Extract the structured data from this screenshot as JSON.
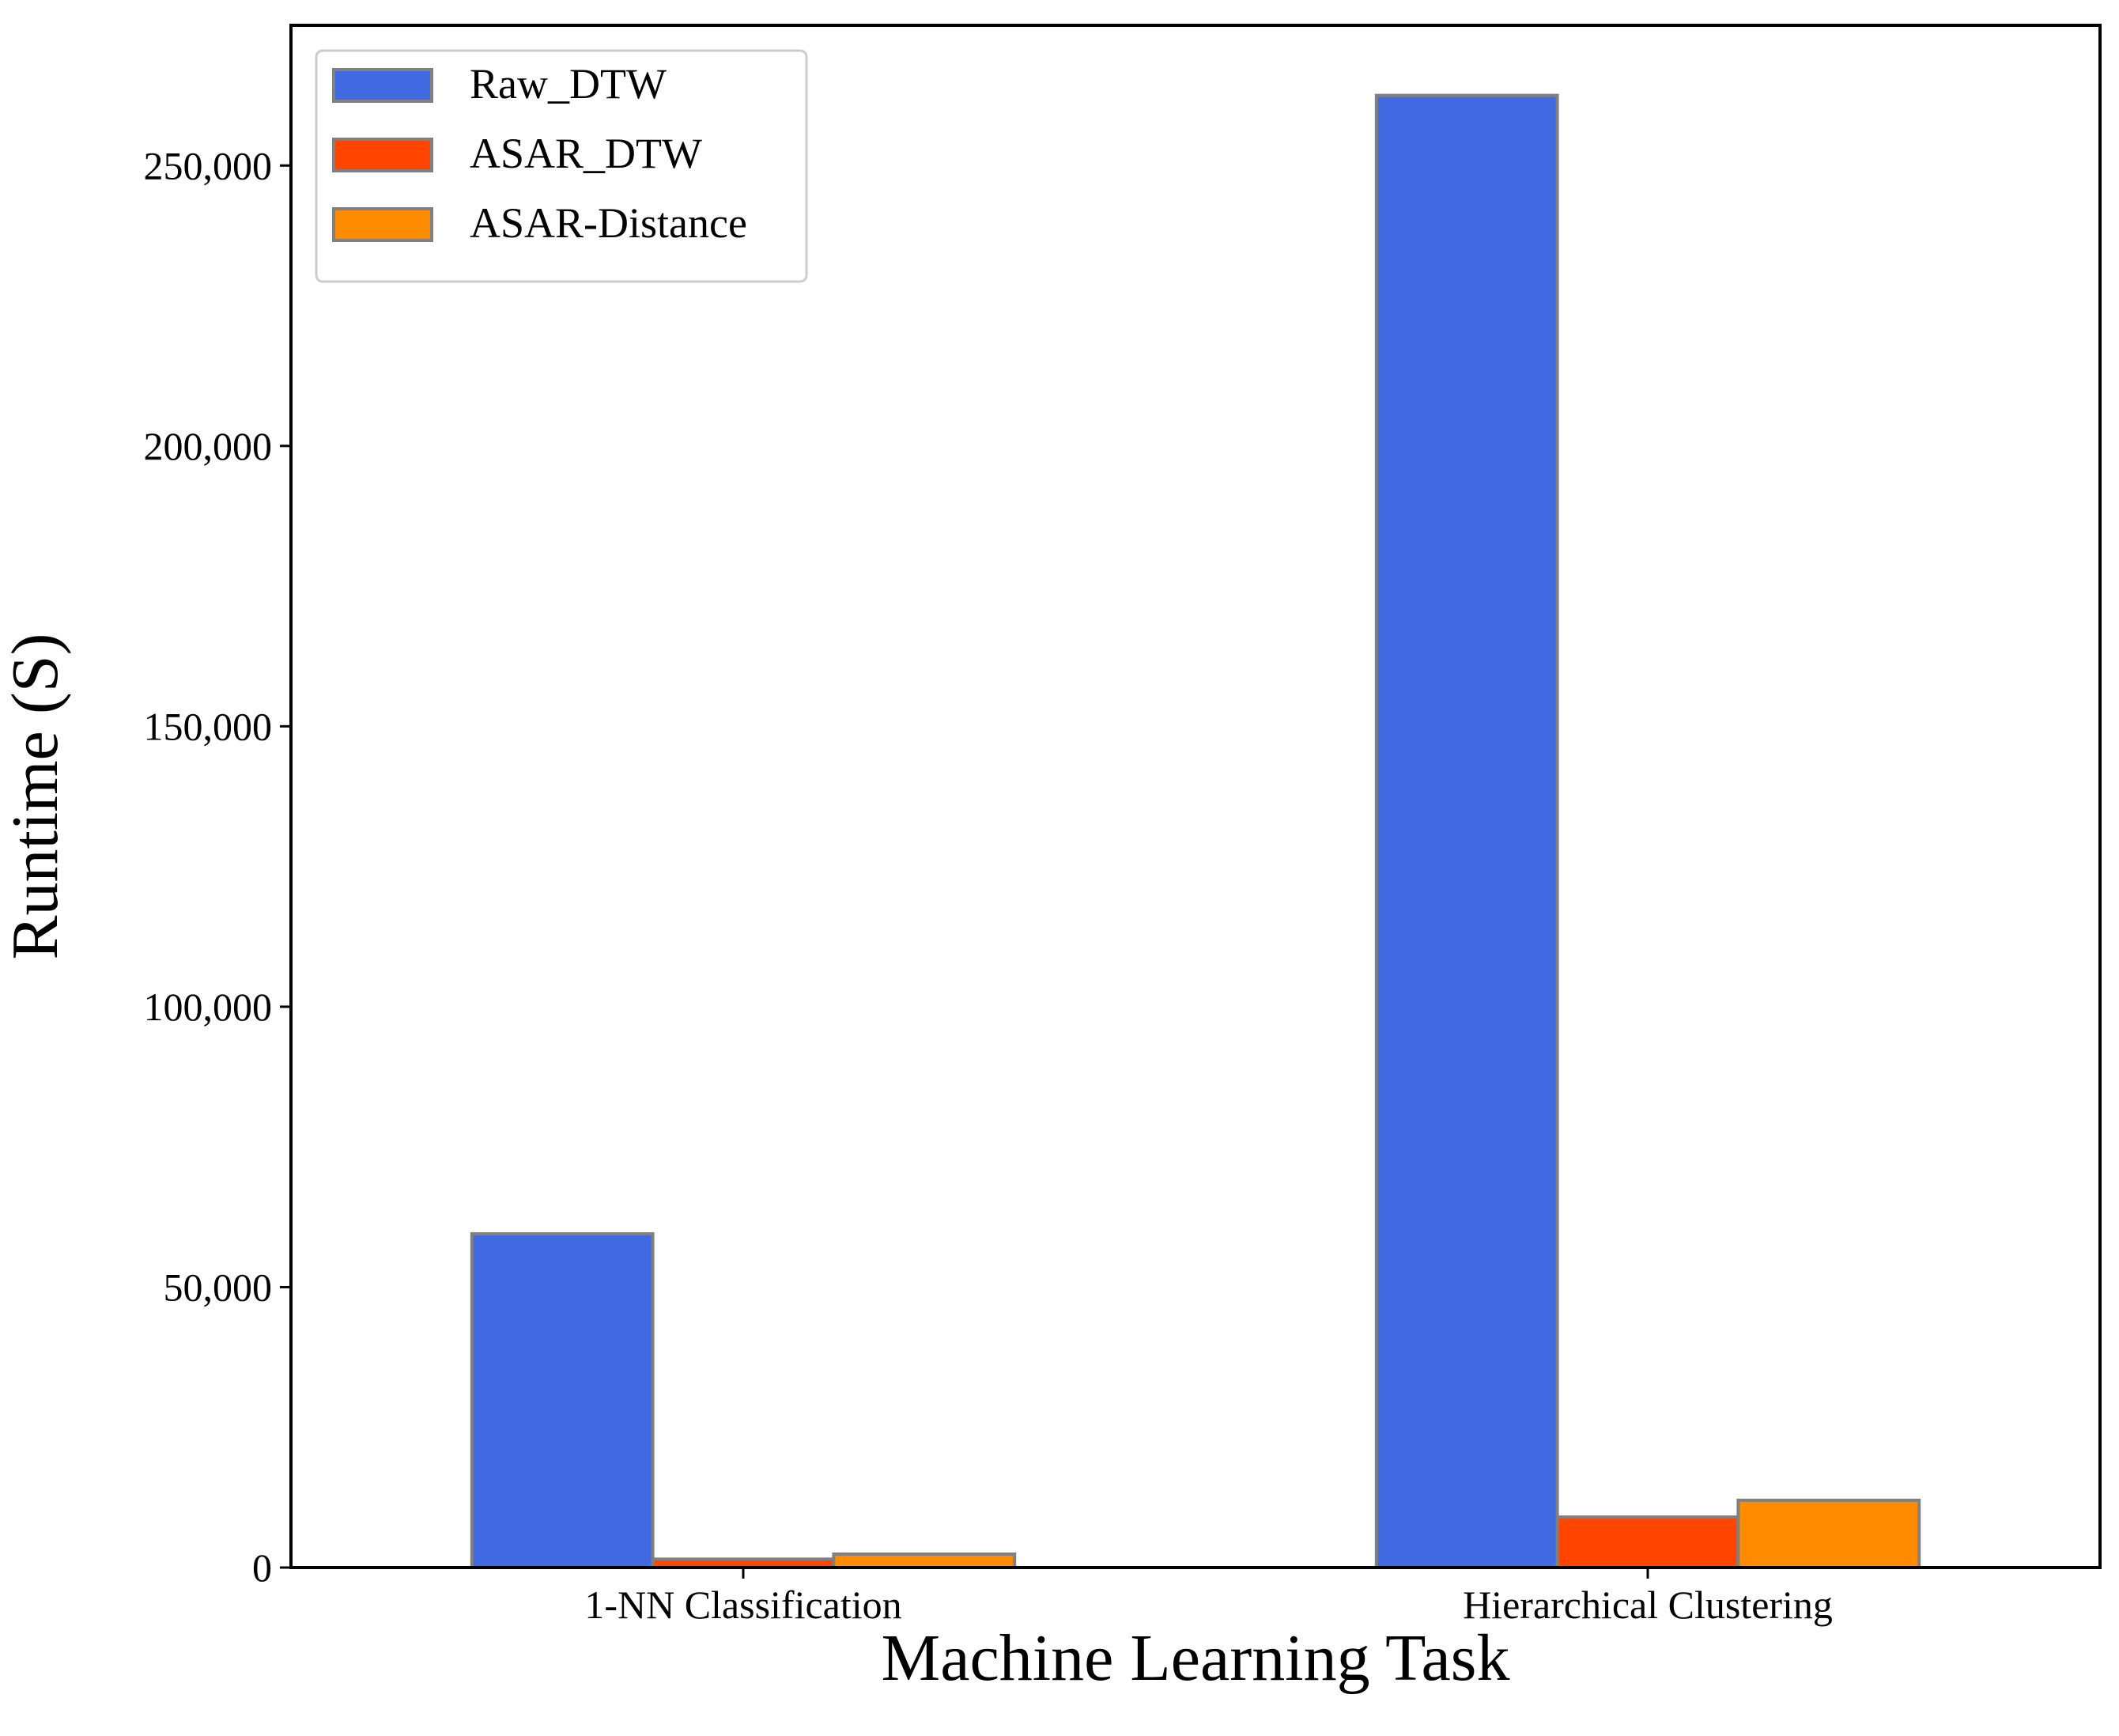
{
  "chart_data": {
    "type": "bar",
    "title": "",
    "xlabel": "Machine Learning Task",
    "ylabel": "Runtime (S)",
    "categories": [
      "1-NN Classification",
      "Hierarchical Clustering"
    ],
    "series": [
      {
        "name": "Raw_DTW",
        "color": "#4169E1",
        "values": [
          59500,
          262500
        ]
      },
      {
        "name": "ASAR_DTW",
        "color": "#FF4500",
        "values": [
          1500,
          9000
        ]
      },
      {
        "name": "ASAR-Distance",
        "color": "#FF8C00",
        "values": [
          2400,
          12000
        ]
      }
    ],
    "ylim": [
      0,
      275000
    ],
    "yticks": [
      0,
      50000,
      100000,
      150000,
      200000,
      250000
    ],
    "ytick_labels": [
      "0",
      "50,000",
      "100,000",
      "150,000",
      "200,000",
      "250,000"
    ],
    "legend_position": "top-left",
    "grid": false,
    "bar_edge_color": "#808080"
  }
}
